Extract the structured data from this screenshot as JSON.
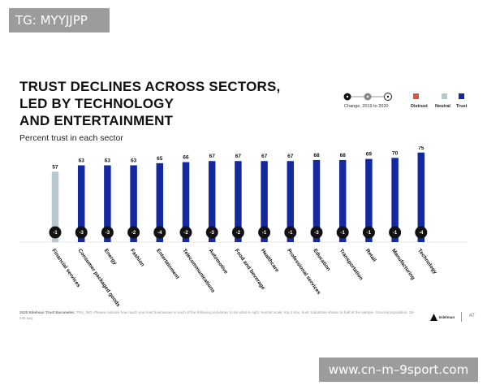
{
  "tags": {
    "top": "TG: MYYJJPP",
    "bottom": "www.cn–m–9sport.com"
  },
  "header": {
    "title_lines": [
      "TRUST DECLINES ACROSS SECTORS,",
      "LED BY TECHNOLOGY",
      "AND ENTERTAINMENT"
    ],
    "subtitle": "Percent trust in each sector"
  },
  "legend": {
    "change_label": "Change, 2019 to 2020",
    "types": [
      {
        "label": "Distrust",
        "color": "#e0533d"
      },
      {
        "label": "Neutral",
        "color": "#b7c9cf"
      },
      {
        "label": "Trust",
        "color": "#1428a0"
      }
    ]
  },
  "chart_data": {
    "type": "bar",
    "title": "TRUST DECLINES ACROSS SECTORS, LED BY TECHNOLOGY AND ENTERTAINMENT",
    "ylabel": "Percent trust in each sector",
    "ylim": [
      0,
      100
    ],
    "categories": [
      "Financial services",
      "Consumer packaged goods",
      "Energy",
      "Fashion",
      "Entertainment",
      "Telecommunications",
      "Automotive",
      "Food and beverage",
      "Healthcare",
      "Professional services",
      "Education",
      "Transportation",
      "Retail",
      "Manufacturing",
      "Technology"
    ],
    "values": [
      57,
      63,
      63,
      63,
      65,
      66,
      67,
      67,
      67,
      67,
      68,
      68,
      69,
      70,
      75
    ],
    "value_labels": [
      "57",
      "63",
      "63",
      "63",
      "65",
      "66",
      "67",
      "67",
      "67",
      "67",
      "68",
      "68",
      "69",
      "70",
      "75"
    ],
    "changes": [
      "-1",
      "-3",
      "-3",
      "-2",
      "-4",
      "-2",
      "-3",
      "-2",
      "-1",
      "-1",
      "-3",
      "-1",
      "-1",
      "-1",
      "-4"
    ],
    "bar_status": [
      "Neutral",
      "Trust",
      "Trust",
      "Trust",
      "Trust",
      "Trust",
      "Trust",
      "Trust",
      "Trust",
      "Trust",
      "Trust",
      "Trust",
      "Trust",
      "Trust",
      "Trust"
    ],
    "colors": {
      "Trust": "#1428a0",
      "Neutral": "#b7c9cf",
      "Distrust": "#e0533d"
    },
    "grid": false,
    "legend_position": "top-right"
  },
  "footer": {
    "source_bold": "2020 Edelman Trust Barometer.",
    "source_text": "TRU_IND. Please indicate how much you trust businesses in each of the following industries to do what is right. 9-point scale; top 4 box, trust. Industries shown to half of the sample. General population, 26-mkt avg.",
    "logo_text": "Edelman",
    "page_number": "47"
  }
}
